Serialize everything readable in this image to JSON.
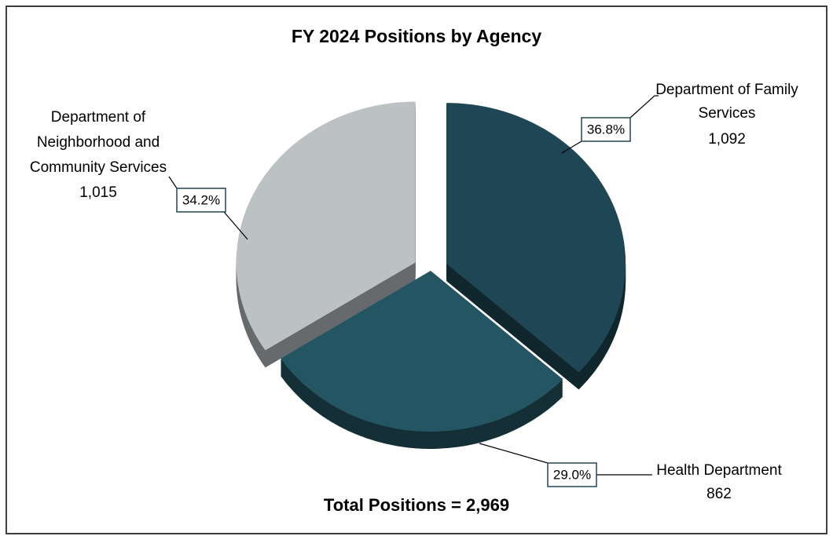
{
  "chart_data": {
    "type": "pie",
    "title": "FY 2024 Positions by Agency",
    "categories": [
      "Department of Family Services",
      "Health Department",
      "Department of Neighborhood and Community Services"
    ],
    "values": [
      1092,
      862,
      1015
    ],
    "value_labels": [
      "1,092",
      "862",
      "1,015"
    ],
    "percent_labels": [
      "36.8%",
      "29.0%",
      "34.2%"
    ],
    "colors": [
      "#1f4654",
      "#245562",
      "#bcc1c4"
    ],
    "annotation": "Total Positions = 2,969"
  }
}
